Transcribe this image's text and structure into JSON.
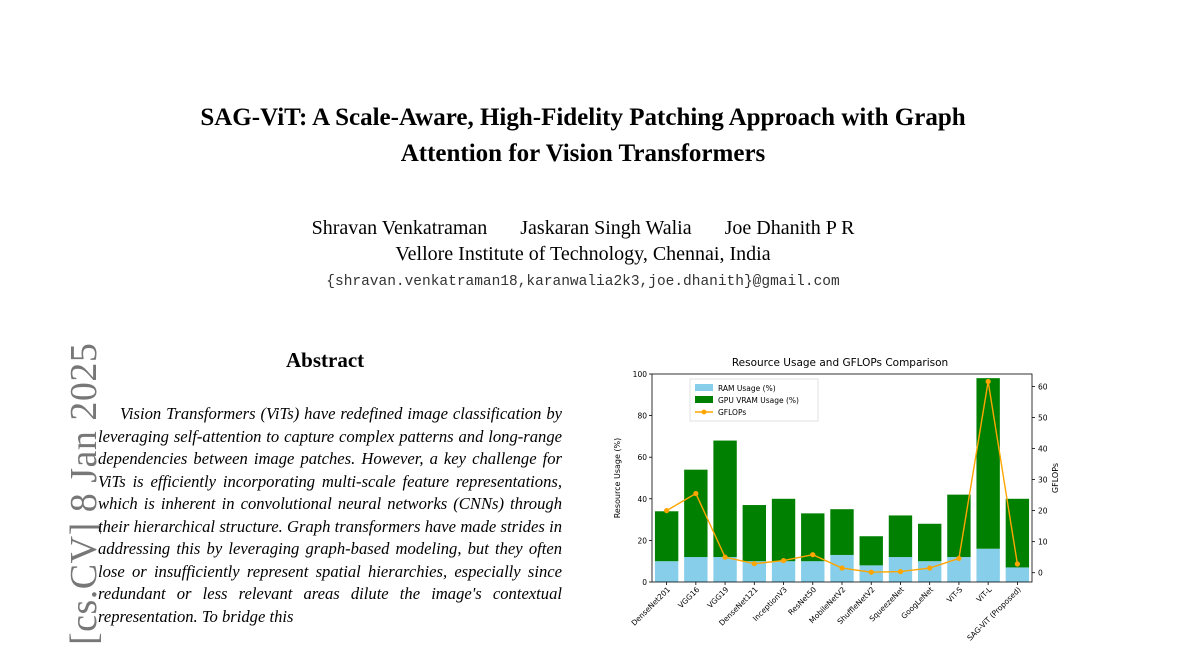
{
  "paper": {
    "title_line1": "SAG-ViT: A Scale-Aware, High-Fidelity Patching Approach with Graph",
    "title_line2": "Attention for Vision Transformers",
    "authors": [
      "Shravan Venkatraman",
      "Jaskaran Singh Walia",
      "Joe Dhanith P R"
    ],
    "affiliation": "Vellore Institute of Technology, Chennai, India",
    "emails": "{shravan.venkatraman18,karanwalia2k3,joe.dhanith}@gmail.com",
    "arxiv_stamp": "[cs.CV]  8 Jan 2025",
    "abstract_heading": "Abstract",
    "abstract_text": "Vision Transformers (ViTs) have redefined image classification by leveraging self-attention to capture complex patterns and long-range dependencies between image patches. However, a key challenge for ViTs is efficiently incorporating multi-scale feature representations, which is inherent in convolutional neural networks (CNNs) through their hierarchical structure. Graph transformers have made strides in addressing this by leveraging graph-based modeling, but they often lose or insufficiently represent spatial hierarchies, especially since redundant or less relevant areas dilute the image's contextual representation. To bridge this"
  },
  "chart_data": {
    "type": "bar",
    "title": "Resource Usage and GFLOPs Comparison",
    "ylabel": "Resource Usage (%)",
    "y2label": "GFLOPs",
    "ylim": [
      0,
      100
    ],
    "y2lim": [
      -3,
      64
    ],
    "yticks": [
      0,
      20,
      40,
      60,
      80,
      100
    ],
    "y2ticks": [
      0,
      10,
      20,
      30,
      40,
      50,
      60
    ],
    "legend_position": "top-left",
    "categories": [
      "DenseNet201",
      "VGG16",
      "VGG19",
      "DenseNet121",
      "InceptionV3",
      "ResNet50",
      "MobileNetV2",
      "ShuffleNetV2",
      "SqueezeNet",
      "GoogLeNet",
      "ViT-S",
      "ViT-L",
      "SAG-ViT (Proposed)"
    ],
    "series": [
      {
        "name": "RAM Usage (%)",
        "kind": "bar",
        "color": "#87ceeb",
        "values": [
          10,
          12,
          12,
          10,
          10,
          10,
          13,
          8,
          12,
          10,
          12,
          16,
          7
        ]
      },
      {
        "name": "GPU VRAM Usage (%)",
        "kind": "bar",
        "color": "#008000",
        "values": [
          24,
          42,
          56,
          27,
          30,
          23,
          22,
          14,
          20,
          18,
          30,
          82,
          33
        ]
      },
      {
        "name": "GFLOPs",
        "kind": "line",
        "color": "#ffa500",
        "axis": "right",
        "values": [
          20,
          25.5,
          5,
          2.9,
          3.9,
          5.8,
          1.5,
          0.15,
          0.35,
          1.5,
          4.6,
          61.6,
          2.8
        ]
      }
    ]
  }
}
